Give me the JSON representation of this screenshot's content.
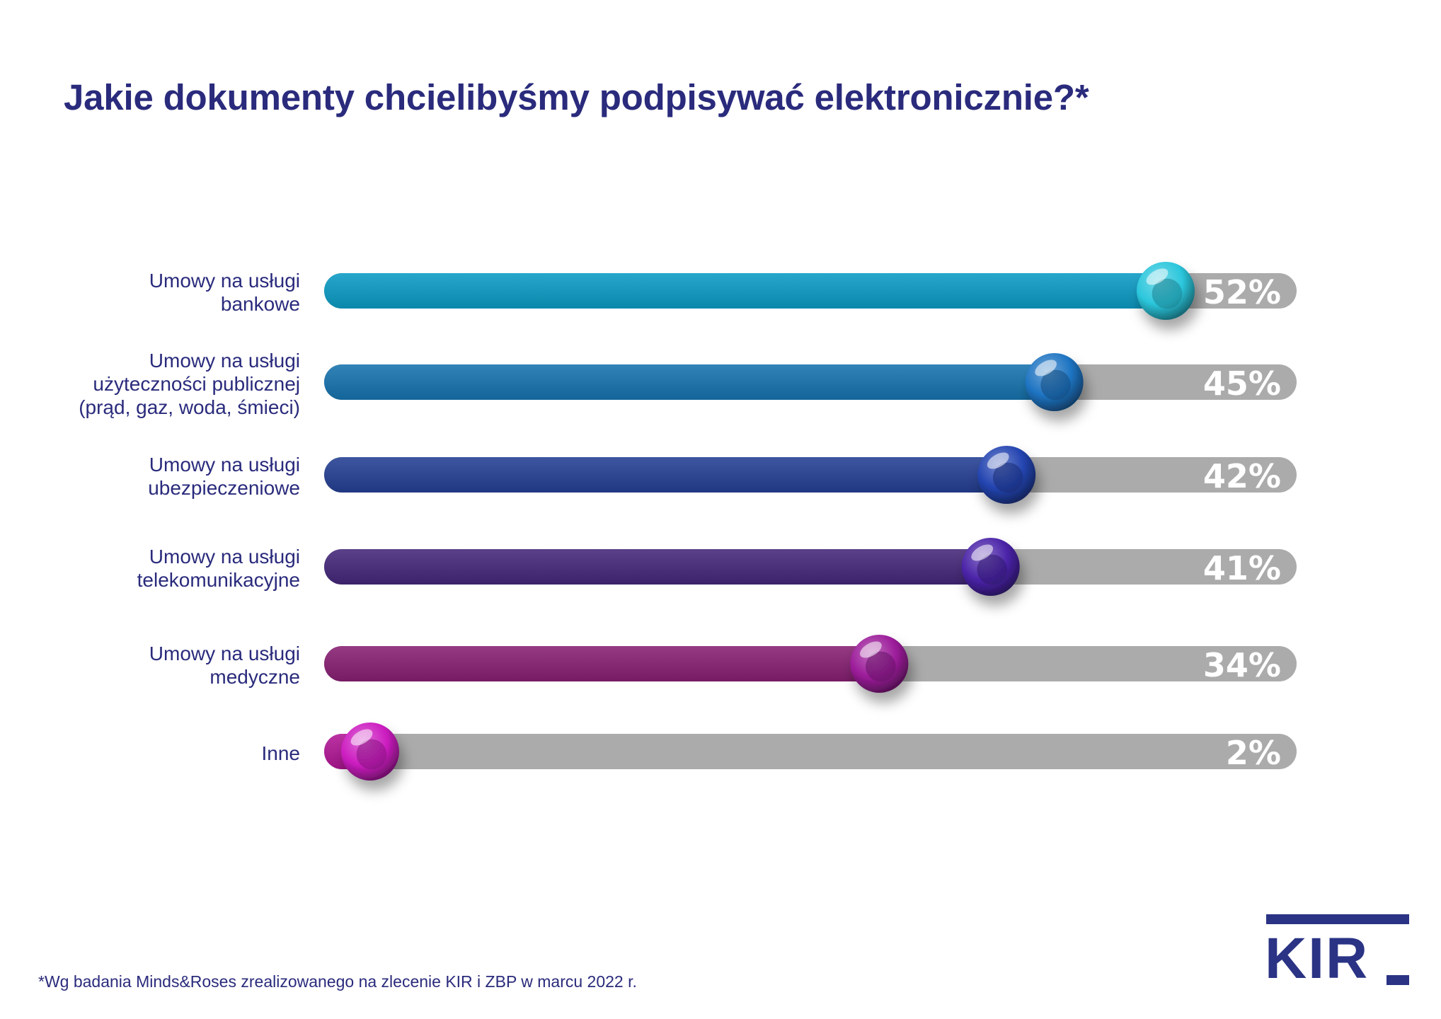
{
  "title": "Jakie dokumenty chcielibyśmy podpisywać elektronicznie?*",
  "footnote": "*Wg badania Minds&Roses zrealizowanego na zlecenie KIR i ZBP w marcu 2022 r.",
  "logo": {
    "text": "KIR",
    "color": "#2a3384"
  },
  "colors": {
    "title": "#2a2b7c",
    "track": "#ababab",
    "value_text": "#ffffff"
  },
  "chart_data": {
    "type": "bar",
    "orientation": "horizontal",
    "xlim": [
      0,
      100
    ],
    "categories": [
      [
        "Umowy na usługi",
        "bankowe"
      ],
      [
        "Umowy na usługi",
        "użyteczności publicznej",
        "(prąd, gaz, woda, śmieci)"
      ],
      [
        "Umowy na usługi",
        "ubezpieczeniowe"
      ],
      [
        "Umowy na usługi",
        "telekomunikacyjne"
      ],
      [
        "Umowy na usługi",
        "medyczne"
      ],
      [
        "Inne"
      ]
    ],
    "values": [
      52,
      45,
      42,
      41,
      34,
      2
    ],
    "value_labels": [
      "52%",
      "45%",
      "42%",
      "41%",
      "34%",
      "2%"
    ],
    "bar_colors": [
      "#0b9ac4",
      "#1673ae",
      "#243f93",
      "#432779",
      "#861f72",
      "#b21697"
    ],
    "knob_colors": [
      "#2bc6dc",
      "#1e74c2",
      "#2344b0",
      "#4a23a8",
      "#9c1c9a",
      "#cc1cc0"
    ],
    "grid": false
  }
}
